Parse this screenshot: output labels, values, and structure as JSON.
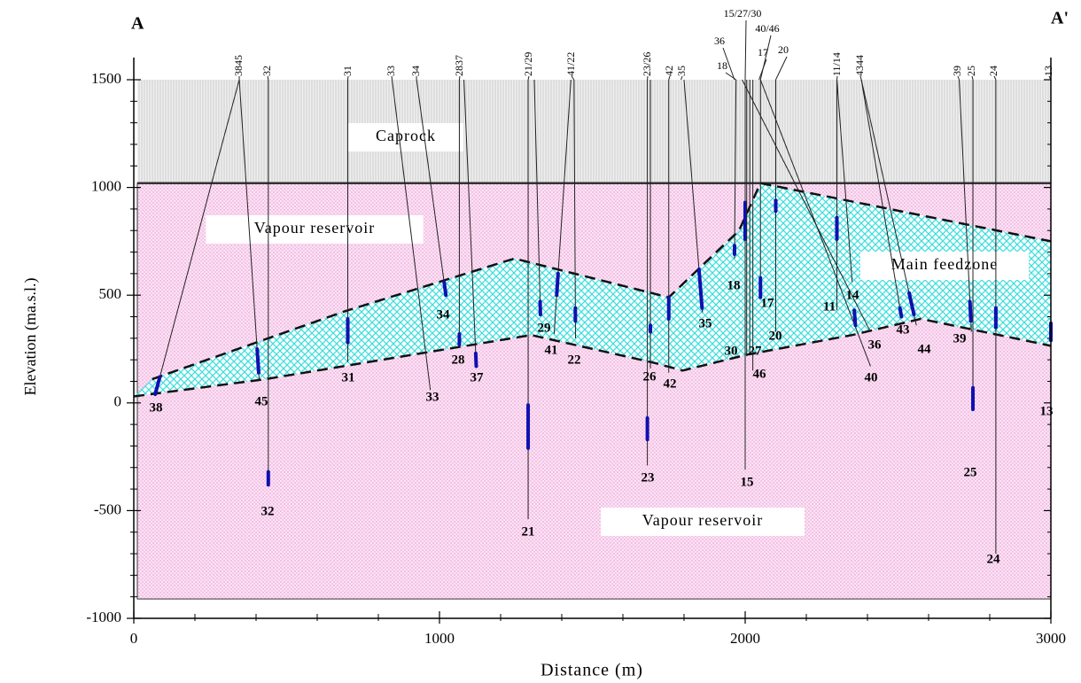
{
  "chart_data": {
    "type": "cross-section",
    "corner_left": "A",
    "corner_right": "A'",
    "x_label": "Distance (m)",
    "y_label": "Elevation (ma.s.l.)",
    "xlim": [
      0,
      3000
    ],
    "xticks": [
      0,
      1000,
      2000,
      3000
    ],
    "ylim": [
      -1000,
      1500
    ],
    "yticks": [
      -1000,
      -500,
      0,
      500,
      1000,
      1500
    ],
    "caprock": {
      "label": "Caprock",
      "top": 1500,
      "base": 1020
    },
    "reservoir": {
      "label_upper": "Vapour reservoir",
      "label_lower": "Vapour reservoir",
      "bottom": -910
    },
    "feedzone": {
      "label": "Main feedzone",
      "upper": {
        "x": [
          60,
          690,
          1245,
          1750,
          1980,
          2050,
          3000
        ],
        "y": [
          110,
          425,
          670,
          490,
          800,
          1020,
          750
        ]
      },
      "lower": {
        "x": [
          0,
          430,
          1300,
          1705,
          1795,
          2010,
          2350,
          2575,
          3000
        ],
        "y": [
          30,
          110,
          315,
          185,
          150,
          225,
          315,
          390,
          265
        ]
      }
    },
    "well_heads": [
      {
        "label": "3845",
        "x": 345
      },
      {
        "label": "32",
        "x": 440
      },
      {
        "label": "31",
        "x": 700
      },
      {
        "label": "33",
        "x": 845
      },
      {
        "label": "34",
        "x": 925
      },
      {
        "label": "2837",
        "x": 1065
      },
      {
        "label": "21/29",
        "x": 1290
      },
      {
        "label": "41/22",
        "x": 1440
      },
      {
        "label": "23/26",
        "x": 1680
      },
      {
        "label": "42",
        "x": 1750
      },
      {
        "label": "35",
        "x": 1790
      },
      {
        "label": "36",
        "x": 1965
      },
      {
        "label": "18",
        "x": 1970
      },
      {
        "label": "15/27/30",
        "x": 2000
      },
      {
        "label": "40/46",
        "x": 2050
      },
      {
        "label": "17",
        "x": 2045
      },
      {
        "label": "20",
        "x": 2100
      },
      {
        "label": "11/14",
        "x": 2300
      },
      {
        "label": "4344",
        "x": 2380
      },
      {
        "label": "39",
        "x": 2700
      },
      {
        "label": "25",
        "x": 2745
      },
      {
        "label": "24",
        "x": 2820
      },
      {
        "label": "13",
        "x": 3000
      }
    ],
    "wells": [
      {
        "name": "38",
        "x_top": 345,
        "x_bottom": 70,
        "bottom": 40,
        "fz": [
          120,
          40
        ]
      },
      {
        "name": "45",
        "x_top": 345,
        "x_bottom": 410,
        "bottom": 110,
        "fz": [
          250,
          140
        ]
      },
      {
        "name": "32",
        "x_top": 440,
        "x_bottom": 440,
        "bottom": -380,
        "fz": [
          -320,
          -380
        ]
      },
      {
        "name": "31",
        "x_top": 700,
        "x_bottom": 700,
        "bottom": 190,
        "fz": [
          390,
          280
        ]
      },
      {
        "name": "33",
        "x_top": 845,
        "x_bottom": 970,
        "bottom": 60
      },
      {
        "name": "34",
        "x_top": 925,
        "x_bottom": 1020,
        "bottom": 510,
        "fz": [
          560,
          500
        ]
      },
      {
        "name": "28",
        "x_top": 1065,
        "x_bottom": 1065,
        "bottom": 260,
        "fz": [
          320,
          270
        ]
      },
      {
        "name": "37",
        "x_top": 1080,
        "x_bottom": 1120,
        "bottom": 180,
        "fz": [
          230,
          170
        ]
      },
      {
        "name": "21",
        "x_top": 1290,
        "x_bottom": 1290,
        "bottom": -540,
        "fz": [
          -10,
          -210
        ]
      },
      {
        "name": "29",
        "x_top": 1310,
        "x_bottom": 1330,
        "bottom": 420,
        "fz": [
          470,
          410
        ]
      },
      {
        "name": "41",
        "x_top": 1430,
        "x_bottom": 1375,
        "bottom": 320,
        "fz": [
          600,
          500
        ]
      },
      {
        "name": "22",
        "x_top": 1440,
        "x_bottom": 1445,
        "bottom": 300,
        "fz": [
          440,
          380
        ]
      },
      {
        "name": "23",
        "x_top": 1680,
        "x_bottom": 1680,
        "bottom": -290,
        "fz": [
          -70,
          -170
        ]
      },
      {
        "name": "26",
        "x_top": 1690,
        "x_bottom": 1690,
        "bottom": 160,
        "fz": [
          360,
          330
        ]
      },
      {
        "name": "42",
        "x_top": 1750,
        "x_bottom": 1750,
        "bottom": 140,
        "fz": [
          490,
          390
        ]
      },
      {
        "name": "35",
        "x_top": 1800,
        "x_bottom": 1860,
        "bottom": 420,
        "fz": [
          620,
          440
        ]
      },
      {
        "name": "18",
        "x_top": 1970,
        "x_bottom": 1965,
        "bottom": 670,
        "fz": [
          730,
          690
        ]
      },
      {
        "name": "15",
        "x_top": 2000,
        "x_bottom": 2000,
        "bottom": -310,
        "fz": [
          930,
          760
        ]
      },
      {
        "name": "30",
        "x_top": 2005,
        "x_bottom": 2005,
        "bottom": 220
      },
      {
        "name": "27",
        "x_top": 2015,
        "x_bottom": 2015,
        "bottom": 220
      },
      {
        "name": "46",
        "x_top": 2025,
        "x_bottom": 2025,
        "bottom": 150
      },
      {
        "name": "17",
        "x_top": 2050,
        "x_bottom": 2050,
        "bottom": 500,
        "fz": [
          580,
          490
        ]
      },
      {
        "name": "20",
        "x_top": 2100,
        "x_bottom": 2100,
        "bottom": 330,
        "fz": [
          940,
          890
        ]
      },
      {
        "name": "40",
        "x_top": 2050,
        "x_bottom": 2410,
        "bottom": 170
      },
      {
        "name": "36",
        "x_top": 1990,
        "x_bottom": 2410,
        "bottom": 330
      },
      {
        "name": "11",
        "x_top": 2300,
        "x_bottom": 2300,
        "bottom": 430,
        "fz": [
          860,
          760
        ]
      },
      {
        "name": "14",
        "x_top": 2300,
        "x_bottom": 2350,
        "bottom": 560,
        "fz": [
          430,
          360
        ]
      },
      {
        "name": "43",
        "x_top": 2380,
        "x_bottom": 2510,
        "bottom": 410,
        "fz": [
          440,
          400
        ]
      },
      {
        "name": "44",
        "x_top": 2380,
        "x_bottom": 2560,
        "bottom": 360,
        "fz": [
          510,
          410
        ]
      },
      {
        "name": "39",
        "x_top": 2700,
        "x_bottom": 2740,
        "bottom": 330,
        "fz": [
          470,
          380
        ]
      },
      {
        "name": "25",
        "x_top": 2745,
        "x_bottom": 2745,
        "bottom": -30,
        "fz": [
          70,
          -30
        ]
      },
      {
        "name": "24",
        "x_top": 2820,
        "x_bottom": 2820,
        "bottom": -700,
        "fz": [
          440,
          350
        ]
      },
      {
        "name": "13",
        "x_top": 3000,
        "x_bottom": 3000,
        "bottom": 0,
        "fz": [
          370,
          290
        ]
      }
    ]
  }
}
